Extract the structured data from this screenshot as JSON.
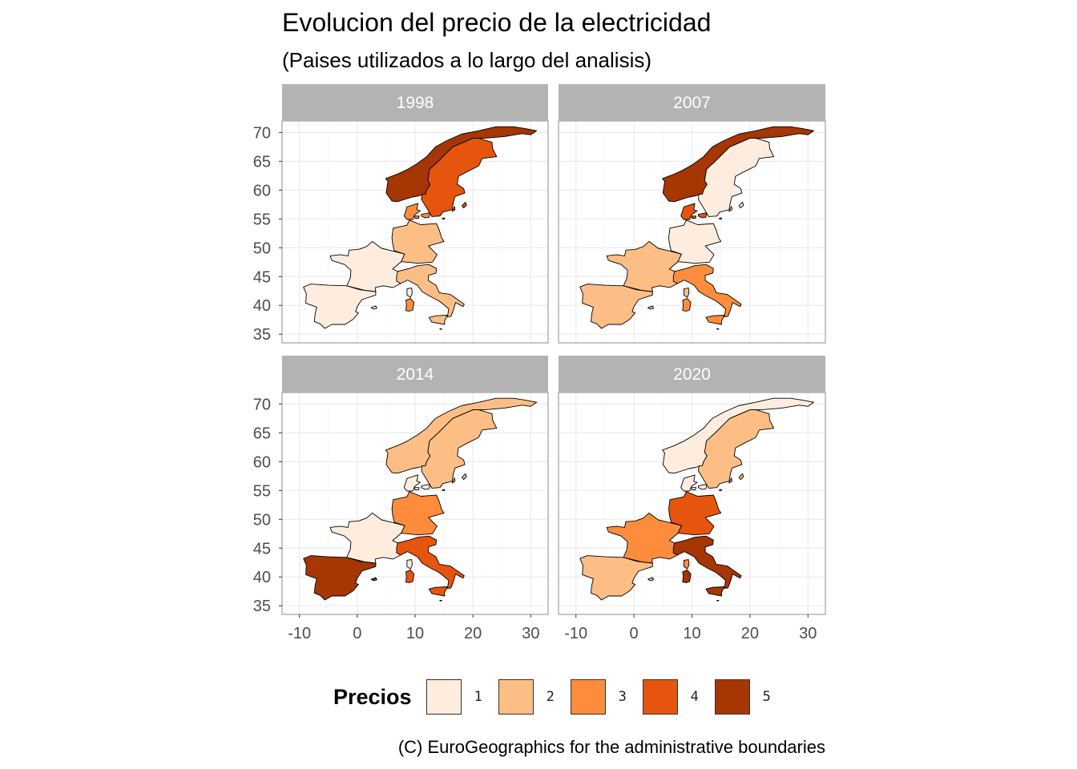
{
  "title": "Evolucion del precio de la electricidad",
  "subtitle": "(Paises utilizados a lo largo del analisis)",
  "caption": "(C) EuroGeographics for the administrative boundaries",
  "legend": {
    "title": "Precios",
    "items": [
      {
        "label": "1",
        "color": "#FEEDDE"
      },
      {
        "label": "2",
        "color": "#FDBE85"
      },
      {
        "label": "3",
        "color": "#FD8D3C"
      },
      {
        "label": "4",
        "color": "#E6550D"
      },
      {
        "label": "5",
        "color": "#A63603"
      }
    ]
  },
  "axes": {
    "x_ticks": [
      "-10",
      "0",
      "10",
      "20",
      "30"
    ],
    "y_ticks": [
      "35",
      "40",
      "45",
      "50",
      "55",
      "60",
      "65",
      "70"
    ]
  },
  "chart_data": {
    "type": "choropleth",
    "x_range": [
      -13,
      33
    ],
    "y_range": [
      33.5,
      72
    ],
    "panels": [
      {
        "year": "1998",
        "values": {
          "Spain": 1,
          "France": 1,
          "Germany": 2,
          "Italy": 2,
          "Sardinia": 3,
          "Denmark": 3,
          "Norway": 5,
          "Sweden": 4
        }
      },
      {
        "year": "2007",
        "values": {
          "Spain": 2,
          "France": 2,
          "Germany": 1,
          "Italy": 3,
          "Sardinia": 3,
          "Denmark": 4,
          "Norway": 5,
          "Sweden": 1
        }
      },
      {
        "year": "2014",
        "values": {
          "Spain": 5,
          "France": 1,
          "Germany": 3,
          "Italy": 4,
          "Sardinia": 4,
          "Denmark": 1,
          "Norway": 2,
          "Sweden": 2
        }
      },
      {
        "year": "2020",
        "values": {
          "Spain": 2,
          "France": 3,
          "Germany": 4,
          "Italy": 5,
          "Sardinia": 5,
          "Denmark": 1,
          "Norway": 1,
          "Sweden": 2
        }
      }
    ]
  }
}
